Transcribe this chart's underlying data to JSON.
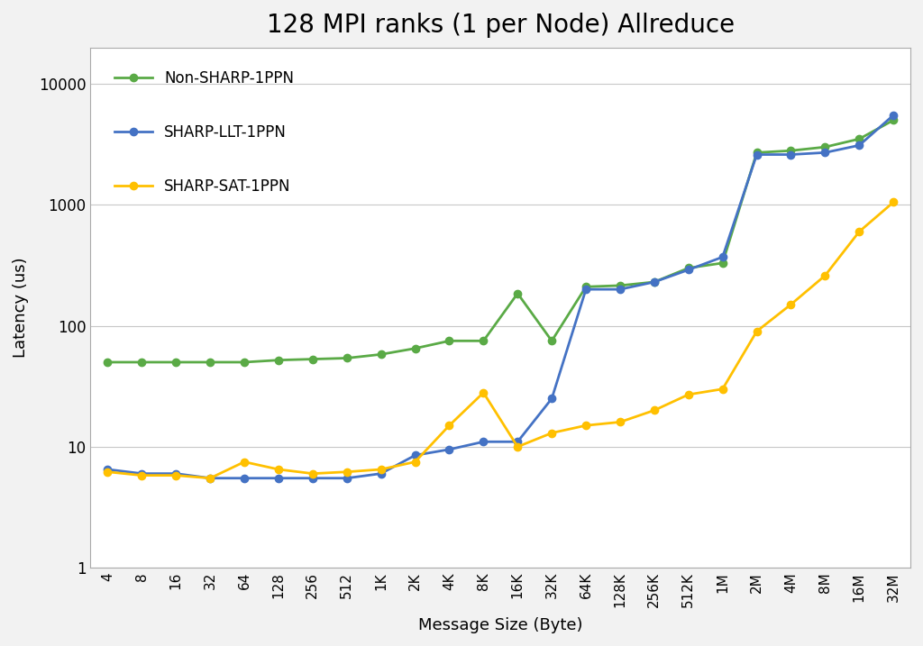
{
  "title": "128 MPI ranks (1 per Node) Allreduce",
  "xlabel": "Message Size (Byte)",
  "ylabel": "Latency (us)",
  "x_labels": [
    "4",
    "8",
    "16",
    "32",
    "64",
    "128",
    "256",
    "512",
    "1K",
    "2K",
    "4K",
    "8K",
    "16K",
    "32K",
    "64K",
    "128K",
    "256K",
    "512K",
    "1M",
    "2M",
    "4M",
    "8M",
    "16M",
    "32M"
  ],
  "x_values": [
    4,
    8,
    16,
    32,
    64,
    128,
    256,
    512,
    1024,
    2048,
    4096,
    8192,
    16384,
    32768,
    65536,
    131072,
    262144,
    524288,
    1048576,
    2097152,
    4194304,
    8388608,
    16777216,
    33554432
  ],
  "non_sharp": [
    50,
    50,
    50,
    50,
    50,
    52,
    53,
    54,
    58,
    65,
    75,
    75,
    185,
    75,
    210,
    215,
    230,
    300,
    330,
    2700,
    2800,
    3000,
    3500,
    5000
  ],
  "sharp_llt": [
    6.5,
    6.0,
    6.0,
    5.5,
    5.5,
    5.5,
    5.5,
    5.5,
    6.0,
    8.5,
    9.5,
    11,
    11,
    25,
    200,
    200,
    230,
    290,
    370,
    2600,
    2600,
    2700,
    3100,
    5500
  ],
  "sharp_sat": [
    6.2,
    5.8,
    5.8,
    5.5,
    7.5,
    6.5,
    6.0,
    6.2,
    6.5,
    7.5,
    15,
    28,
    10,
    13,
    15,
    16,
    20,
    27,
    30,
    90,
    150,
    260,
    600,
    1050
  ],
  "non_sharp_color": "#5aaa46",
  "sharp_llt_color": "#4472c4",
  "sharp_sat_color": "#ffc000",
  "background_color": "#f2f2f2",
  "plot_bg_color": "#ffffff",
  "grid_color": "#c8c8c8",
  "ylim_min": 1,
  "ylim_max": 20000,
  "title_fontsize": 20,
  "yticks": [
    1,
    10,
    100,
    1000,
    10000
  ],
  "ytick_labels": [
    "1",
    "10",
    "100",
    "1000",
    "10000"
  ]
}
